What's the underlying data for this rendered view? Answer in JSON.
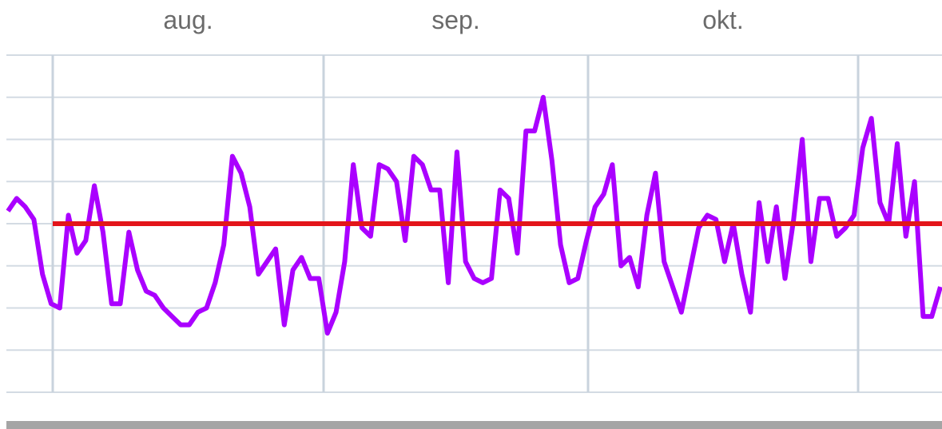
{
  "chart_data": {
    "type": "line",
    "title": "",
    "xlabel": "",
    "ylabel": "",
    "x_axis": {
      "tick_labels": [
        "aug.",
        "sep.",
        "okt."
      ]
    },
    "ylim": [
      0,
      8
    ],
    "grid": true,
    "series": [
      {
        "color": "#aa00ff",
        "values": [
          4.3,
          4.6,
          4.4,
          4.1,
          2.8,
          2.1,
          2.0,
          4.2,
          3.3,
          3.6,
          4.9,
          3.8,
          2.1,
          2.1,
          3.8,
          2.9,
          2.4,
          2.3,
          2.0,
          1.8,
          1.6,
          1.6,
          1.9,
          2.0,
          2.6,
          3.5,
          5.6,
          5.2,
          4.4,
          2.8,
          3.1,
          3.4,
          1.6,
          2.9,
          3.2,
          2.7,
          2.7,
          1.4,
          1.9,
          3.1,
          5.4,
          3.9,
          3.7,
          5.4,
          5.3,
          5.0,
          3.6,
          5.6,
          5.4,
          4.8,
          4.8,
          2.6,
          5.7,
          3.1,
          2.7,
          2.6,
          2.7,
          4.8,
          4.6,
          3.3,
          6.2,
          6.2,
          7.0,
          5.5,
          3.5,
          2.6,
          2.7,
          3.6,
          4.4,
          4.7,
          5.4,
          3.0,
          3.2,
          2.5,
          4.2,
          5.2,
          3.1,
          2.5,
          1.9,
          2.9,
          3.9,
          4.2,
          4.1,
          3.1,
          4.0,
          2.8,
          1.9,
          4.5,
          3.1,
          4.4,
          2.7,
          4.1,
          6.0,
          3.1,
          4.6,
          4.6,
          3.7,
          3.9,
          4.2,
          5.8,
          6.5,
          4.5,
          4.0,
          5.9,
          3.7,
          5.0,
          1.8,
          1.8,
          2.5
        ]
      },
      {
        "color": "#e3151a",
        "values": [
          4.0,
          4.0
        ]
      }
    ]
  }
}
